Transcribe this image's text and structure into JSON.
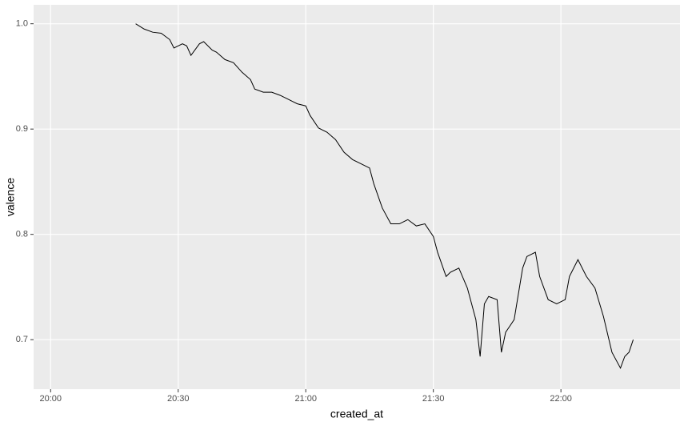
{
  "chart_data": {
    "type": "line",
    "x_label": "created_at",
    "y_label": "valence",
    "x": [
      "20:20",
      "20:22",
      "20:24",
      "20:26",
      "20:28",
      "20:29",
      "20:31",
      "20:32",
      "20:33",
      "20:35",
      "20:36",
      "20:38",
      "20:39",
      "20:41",
      "20:43",
      "20:45",
      "20:47",
      "20:48",
      "20:50",
      "20:52",
      "20:54",
      "20:56",
      "20:58",
      "21:00",
      "21:01",
      "21:03",
      "21:05",
      "21:07",
      "21:09",
      "21:11",
      "21:13",
      "21:15",
      "21:16",
      "21:18",
      "21:20",
      "21:22",
      "21:24",
      "21:26",
      "21:28",
      "21:30",
      "21:31",
      "21:33",
      "21:34",
      "21:36",
      "21:38",
      "21:40",
      "21:41",
      "21:42",
      "21:43",
      "21:45",
      "21:46",
      "21:47",
      "21:49",
      "21:51",
      "21:52",
      "21:54",
      "21:55",
      "21:57",
      "21:59",
      "22:01",
      "22:02",
      "22:04",
      "22:06",
      "22:08",
      "22:10",
      "22:12",
      "22:14",
      "22:15",
      "22:16",
      "22:17"
    ],
    "series": [
      {
        "color": "#000000",
        "values": [
          1.0,
          0.995,
          0.992,
          0.991,
          0.985,
          0.977,
          0.981,
          0.979,
          0.97,
          0.981,
          0.983,
          0.975,
          0.973,
          0.966,
          0.963,
          0.954,
          0.947,
          0.938,
          0.935,
          0.935,
          0.932,
          0.928,
          0.924,
          0.922,
          0.913,
          0.901,
          0.897,
          0.89,
          0.878,
          0.871,
          0.867,
          0.863,
          0.848,
          0.825,
          0.81,
          0.81,
          0.814,
          0.808,
          0.81,
          0.798,
          0.783,
          0.76,
          0.764,
          0.768,
          0.749,
          0.719,
          0.684,
          0.734,
          0.741,
          0.738,
          0.688,
          0.707,
          0.719,
          0.768,
          0.779,
          0.783,
          0.76,
          0.738,
          0.734,
          0.738,
          0.76,
          0.776,
          0.76,
          0.749,
          0.722,
          0.688,
          0.673,
          0.684,
          0.688,
          0.7
        ]
      }
    ],
    "xlim": [
      "19:56",
      "22:28"
    ],
    "xticks": [
      "20:00",
      "20:30",
      "21:00",
      "21:30",
      "22:00"
    ],
    "ylim": [
      0.653,
      1.018
    ],
    "yticks": [
      {
        "value": 0.7,
        "label": "0.7"
      },
      {
        "value": 0.8,
        "label": "0.8"
      },
      {
        "value": 0.9,
        "label": "0.9"
      },
      {
        "value": 1.0,
        "label": "1.0"
      }
    ],
    "grid": true
  }
}
